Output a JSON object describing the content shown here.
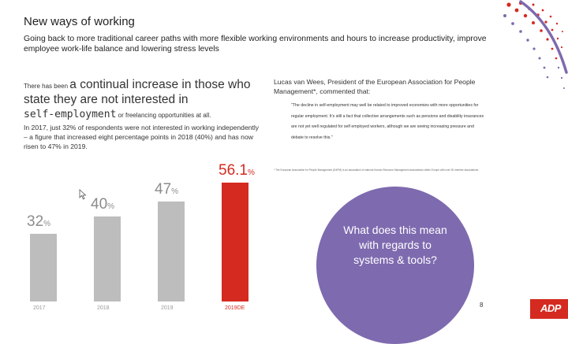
{
  "header": {
    "title": "New ways of working",
    "subtitle": "Going back to more traditional career paths with more flexible working environments and hours to increase productivity, improve employee work-life balance and lowering stress levels"
  },
  "left_text": {
    "intro_small": "There has been ",
    "intro_big": "a continual increase in those who state they are not interested in",
    "mono": "self-employment",
    "tail_small": " or freelancing opportunities at all.",
    "body": "In 2017, just 32% of respondents were not interested in working independently – a figure that increased eight percentage points in 2018 (40%) and has now risen to 47% in 2019."
  },
  "quote": {
    "author": "Lucas van Wees, President of the European Association for People Management*, commented that:",
    "text": "\"The decline in self-employment may well be related to improved economies with more opportunities for regular employment. It’s still a fact that collective arrangements such as pensions and disability insurances are not yet well regulated for self employed workers, although we are seeing increasing pressure and debate to resolve this.\"",
    "footnote": "* The European Association for People Management (EAPM) is an association of national Human Resource Management associations within Europe with over 30 member associations."
  },
  "chart_data": {
    "type": "bar",
    "categories": [
      "2017",
      "2018",
      "2019",
      "2019DE"
    ],
    "values": [
      32,
      40,
      47,
      56.1
    ],
    "value_labels": [
      "32",
      "40",
      "47",
      "56.1"
    ],
    "unit_label": "%",
    "highlight_index": 3,
    "ylim": [
      0,
      60
    ],
    "colors": {
      "default": "#bdbdbd",
      "highlight": "#d42a20",
      "label": "#8c8c8c"
    }
  },
  "callout": {
    "text": "What does this mean with regards to systems & tools?"
  },
  "footer": {
    "page_number": "8",
    "logo_text": "ADP"
  },
  "colors": {
    "accent_red": "#d42a20",
    "accent_purple": "#7e6aaf"
  }
}
